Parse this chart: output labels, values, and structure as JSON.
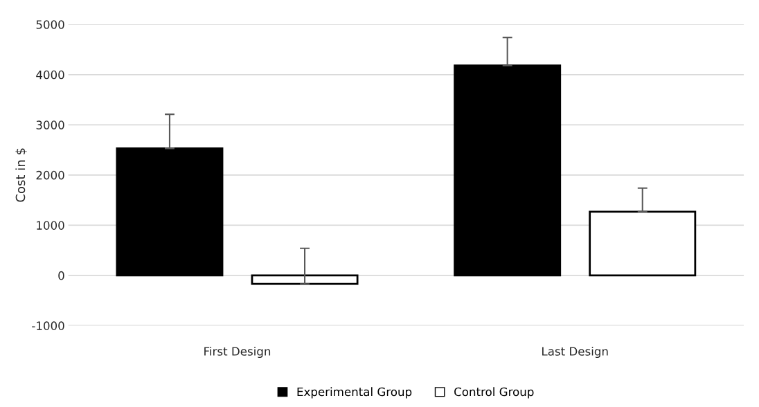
{
  "chart_data": {
    "type": "bar",
    "ylabel": "Cost in $",
    "categories": [
      "First Design",
      "Last Design"
    ],
    "series": [
      {
        "name": "Experimental Group",
        "color": "#000000",
        "values": [
          2530,
          4180
        ],
        "errors": [
          [
            2530,
            3210
          ],
          [
            4180,
            4740
          ]
        ]
      },
      {
        "name": "Control Group",
        "color": "#ffffff",
        "values": [
          -170,
          1270
        ],
        "errors": [
          [
            -170,
            540
          ],
          [
            1270,
            1740
          ]
        ]
      }
    ],
    "ylim": [
      -1000,
      5000
    ],
    "yticks": [
      -1000,
      0,
      1000,
      2000,
      3000,
      4000,
      5000
    ],
    "grid": "y",
    "legend": "bottom"
  }
}
